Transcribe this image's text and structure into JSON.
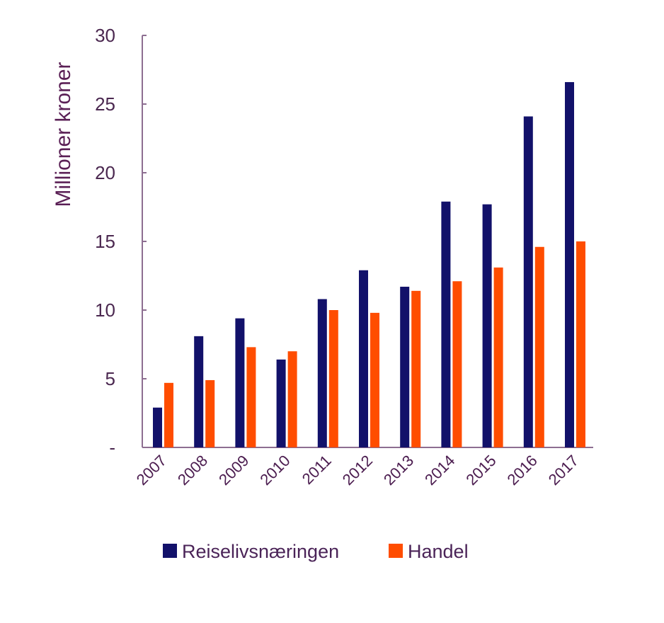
{
  "chart_data": {
    "type": "bar",
    "title": "",
    "xlabel": "",
    "ylabel": "Millioner kroner",
    "ylim": [
      0,
      30
    ],
    "yticks": [
      0,
      5,
      10,
      15,
      20,
      25,
      30
    ],
    "ytick_labels": [
      "-",
      "5",
      "10",
      "15",
      "20",
      "25",
      "30"
    ],
    "grid": false,
    "legend_position": "bottom",
    "categories": [
      "2007",
      "2008",
      "2009",
      "2010",
      "2011",
      "2012",
      "2013",
      "2014",
      "2015",
      "2016",
      "2017"
    ],
    "series": [
      {
        "name": "Reiselivsnæringen",
        "color": "#12116a",
        "values": [
          2.9,
          8.1,
          9.4,
          6.4,
          10.8,
          12.9,
          11.7,
          17.9,
          17.7,
          24.1,
          26.6
        ]
      },
      {
        "name": "Handel",
        "color": "#ff4d00",
        "values": [
          4.7,
          4.9,
          7.3,
          7.0,
          10.0,
          9.8,
          11.4,
          12.1,
          13.1,
          14.6,
          15.0
        ]
      }
    ]
  },
  "colors": {
    "axis": "#8d6e91",
    "text": "#4b2850"
  }
}
